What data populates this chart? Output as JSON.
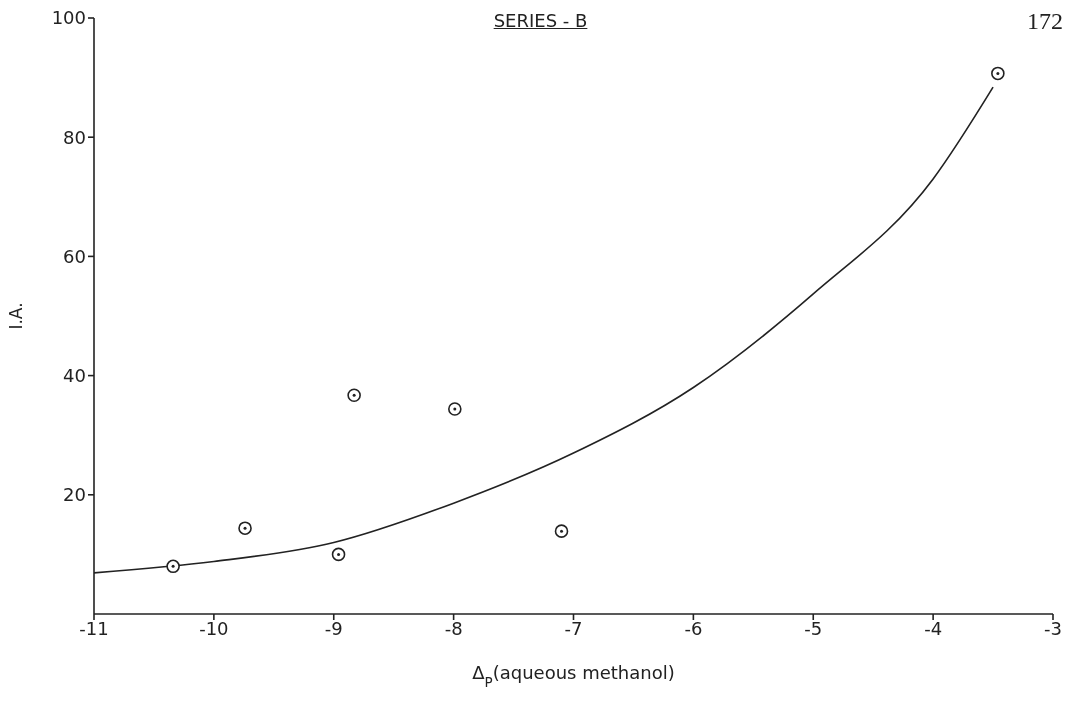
{
  "chart_data": {
    "type": "scatter",
    "title": "SERIES - B",
    "xlabel": "Δ$_{P}$(aqueous methanol)",
    "ylabel": "I.A.",
    "annotations": [
      "172"
    ],
    "xlim": [
      -11,
      -3
    ],
    "xticks": [
      -11,
      -10,
      -9,
      -8,
      -7,
      -6,
      -5,
      -4,
      -3
    ],
    "ylim": [
      0,
      100
    ],
    "yticks": [
      20,
      40,
      60,
      80,
      100
    ],
    "marker": "circle",
    "series": [
      {
        "color": "#222222",
        "x": [
          -10.34,
          -9.74,
          -8.96,
          -8.83,
          -7.99,
          -7.1,
          -3.46
        ],
        "values": [
          8.0,
          14.4,
          10.0,
          36.7,
          34.4,
          13.9,
          90.7
        ]
      },
      {
        "type": "line",
        "color": "#222222",
        "marker": "none",
        "x": [
          -11,
          -10,
          -9,
          -8,
          -7,
          -6,
          -5,
          -4,
          -3.5
        ],
        "values": [
          6.9,
          8.8,
          12,
          18.6,
          27,
          38,
          53.7,
          73,
          88.4
        ]
      }
    ]
  }
}
